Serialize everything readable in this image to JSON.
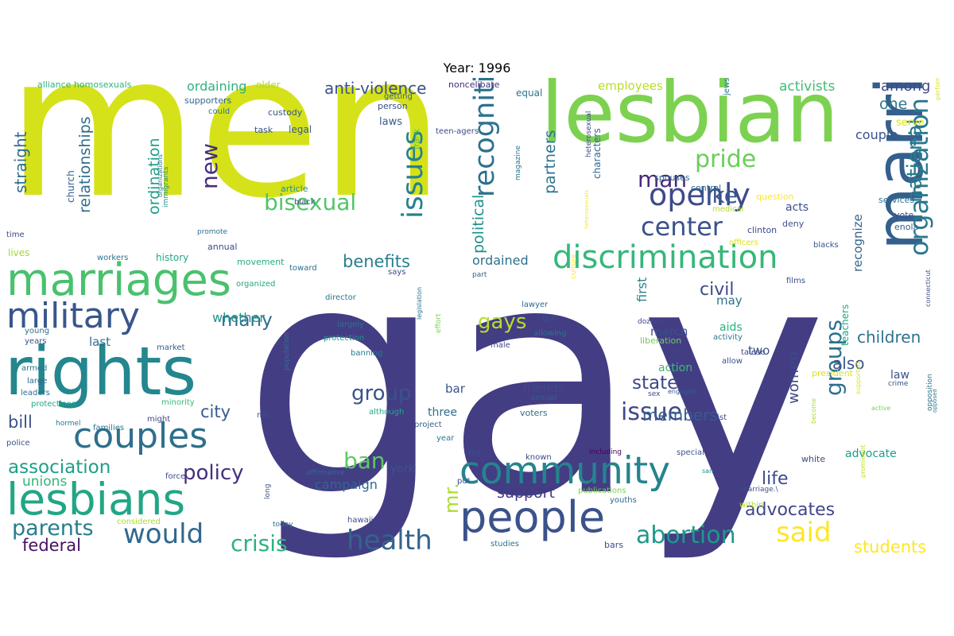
{
  "title": "Year: 1996",
  "colors": {
    "background": "#ffffff",
    "colormap": "viridis"
  },
  "words": [
    {
      "text": "gay",
      "color": "#433d84"
    },
    {
      "text": "men",
      "color": "#d5e21a"
    },
    {
      "text": "lesbian",
      "color": "#7cd250"
    },
    {
      "text": "marriage",
      "color": "#355f8d"
    },
    {
      "text": "rights",
      "color": "#24868e"
    },
    {
      "text": "marriages",
      "color": "#4ac16d"
    },
    {
      "text": "people",
      "color": "#3b528b"
    },
    {
      "text": "community",
      "color": "#25848e"
    },
    {
      "text": "couples",
      "color": "#2e6f8e"
    },
    {
      "text": "lesbians",
      "color": "#21a685"
    },
    {
      "text": "military",
      "color": "#39568c"
    },
    {
      "text": "discrimination",
      "color": "#35b779"
    },
    {
      "text": "openly",
      "color": "#3e4a89"
    },
    {
      "text": "recognition",
      "color": "#2c728e"
    },
    {
      "text": "organization",
      "color": "#2a788e"
    },
    {
      "text": "issues",
      "color": "#26828e"
    },
    {
      "text": "health",
      "color": "#33638d"
    },
    {
      "text": "would",
      "color": "#31688e"
    },
    {
      "text": "said",
      "color": "#fde725"
    },
    {
      "text": "center",
      "color": "#3b528b"
    },
    {
      "text": "abortion",
      "color": "#1f988b"
    },
    {
      "text": "crisis",
      "color": "#2db27d"
    },
    {
      "text": "issue",
      "color": "#3e4989"
    },
    {
      "text": "pride",
      "color": "#6ccd5a"
    },
    {
      "text": "man",
      "color": "#482878"
    },
    {
      "text": "groups",
      "color": "#2d708e"
    },
    {
      "text": "national",
      "color": "#2a788e"
    },
    {
      "text": "bisexual",
      "color": "#52c569"
    },
    {
      "text": "like",
      "color": "#38588c"
    },
    {
      "text": "group",
      "color": "#3b528b"
    },
    {
      "text": "new",
      "color": "#472d7b"
    },
    {
      "text": "parents",
      "color": "#287d8e"
    },
    {
      "text": "gays",
      "color": "#b5de2b"
    },
    {
      "text": "policy",
      "color": "#46307e"
    },
    {
      "text": "ban",
      "color": "#5ec962"
    },
    {
      "text": "association",
      "color": "#1f9e89"
    },
    {
      "text": "federal",
      "color": "#471063"
    },
    {
      "text": "mr.",
      "color": "#addc30"
    },
    {
      "text": "many",
      "color": "#2e6e8e"
    },
    {
      "text": "state",
      "color": "#3f4788"
    },
    {
      "text": "advocates",
      "color": "#404688"
    },
    {
      "text": "life",
      "color": "#3e4a89"
    },
    {
      "text": "students",
      "color": "#fde725"
    },
    {
      "text": "political",
      "color": "#21918c"
    },
    {
      "text": "city",
      "color": "#365c8d"
    },
    {
      "text": "civil",
      "color": "#3e4a89"
    },
    {
      "text": "members",
      "color": "#375b8d"
    },
    {
      "text": "anti-violence",
      "color": "#3b528b"
    },
    {
      "text": "straight",
      "color": "#2e6e8e"
    },
    {
      "text": "benefits",
      "color": "#277f8e"
    },
    {
      "text": "also",
      "color": "#39568c"
    },
    {
      "text": "children",
      "color": "#2c728e"
    },
    {
      "text": "women",
      "color": "#3e4a89"
    },
    {
      "text": "partners",
      "color": "#2b758e"
    },
    {
      "text": "relationships",
      "color": "#2e6f8e"
    },
    {
      "text": "ordination",
      "color": "#1fa088"
    },
    {
      "text": "bill",
      "color": "#3b528b"
    },
    {
      "text": "support",
      "color": "#443983"
    },
    {
      "text": "unions",
      "color": "#31b57b"
    },
    {
      "text": "campaign",
      "color": "#31668e"
    },
    {
      "text": "couple",
      "color": "#3a538b"
    },
    {
      "text": "one",
      "color": "#2a768e"
    },
    {
      "text": "among",
      "color": "#3f4889"
    },
    {
      "text": "activists",
      "color": "#3fbc73"
    },
    {
      "text": "ordaining",
      "color": "#2db27d"
    },
    {
      "text": "employees",
      "color": "#b8de29"
    },
    {
      "text": "ordained",
      "color": "#2c718e"
    },
    {
      "text": "recognize",
      "color": "#33638d"
    },
    {
      "text": "first",
      "color": "#25838e"
    },
    {
      "text": "march",
      "color": "#3c4f8a"
    },
    {
      "text": "whether",
      "color": "#20928c"
    },
    {
      "text": "last",
      "color": "#2d708e"
    },
    {
      "text": "three",
      "color": "#2f6c8e"
    },
    {
      "text": "bar",
      "color": "#39558c"
    },
    {
      "text": "york",
      "color": "#3b528b"
    },
    {
      "text": "friends",
      "color": "#3e4a89"
    },
    {
      "text": "two",
      "color": "#39568c"
    },
    {
      "text": "may",
      "color": "#2b748e"
    },
    {
      "text": "aids",
      "color": "#2ab07f"
    },
    {
      "text": "action",
      "color": "#3aba76"
    },
    {
      "text": "advocate",
      "color": "#1e9c89"
    },
    {
      "text": "law",
      "color": "#3b528b"
    },
    {
      "text": "teachers",
      "color": "#21a685"
    },
    {
      "text": "acts",
      "color": "#3c4f8a"
    },
    {
      "text": "serve",
      "color": "#dce319"
    },
    {
      "text": "characters",
      "color": "#31678e"
    },
    {
      "text": "laws",
      "color": "#365c8d"
    },
    {
      "text": "legal",
      "color": "#38598c"
    },
    {
      "text": "person",
      "color": "#3c4f8a"
    },
    {
      "text": "church",
      "color": "#355e8d"
    },
    {
      "text": "history",
      "color": "#22a884"
    },
    {
      "text": "annual",
      "color": "#3e4a89"
    },
    {
      "text": "movement",
      "color": "#25ab82"
    },
    {
      "text": "lives",
      "color": "#a2da37"
    },
    {
      "text": "older",
      "color": "#addc30"
    },
    {
      "text": "alliance homosexuals",
      "color": "#30b57a"
    },
    {
      "text": "supporters",
      "color": "#31678e"
    },
    {
      "text": "could",
      "color": "#2a788e"
    },
    {
      "text": "custody",
      "color": "#39568c"
    },
    {
      "text": "task",
      "color": "#3b528b"
    },
    {
      "text": "getting",
      "color": "#355e8d"
    },
    {
      "text": "says",
      "color": "#3e4989"
    },
    {
      "text": "equal",
      "color": "#2c728e"
    },
    {
      "text": "noncelibate",
      "color": "#472d7b"
    },
    {
      "text": "teen-agers",
      "color": "#3e4a89"
    },
    {
      "text": "frank",
      "color": "#3fbc73"
    },
    {
      "text": "spouses",
      "color": "#31688e"
    },
    {
      "text": "control",
      "color": "#2e6e8e"
    },
    {
      "text": "question",
      "color": "#fde725"
    },
    {
      "text": "article",
      "color": "#20928c"
    },
    {
      "text": "black",
      "color": "#3e4a89"
    },
    {
      "text": "magazine",
      "color": "#2b758e"
    },
    {
      "text": "medical",
      "color": "#b5de2b"
    },
    {
      "text": "deny",
      "color": "#3b528b"
    },
    {
      "text": "clinton",
      "color": "#3e4a89"
    },
    {
      "text": "officers",
      "color": "#dce319"
    },
    {
      "text": "blacks",
      "color": "#3b528b"
    },
    {
      "text": "services",
      "color": "#2c718e"
    },
    {
      "text": "vote",
      "color": "#3b528b"
    },
    {
      "text": "enola",
      "color": "#33638d"
    },
    {
      "text": "jews",
      "color": "#2a788e"
    },
    {
      "text": "immigrants",
      "color": "#21918c"
    },
    {
      "text": "organizations",
      "color": "#2c728e"
    },
    {
      "text": "time",
      "color": "#3e4a89"
    },
    {
      "text": "promote",
      "color": "#2d708e"
    },
    {
      "text": "workers",
      "color": "#2b748e"
    },
    {
      "text": "toward",
      "color": "#2e6e8e"
    },
    {
      "text": "organized",
      "color": "#22a884"
    },
    {
      "text": "director",
      "color": "#2a788e"
    },
    {
      "text": "part",
      "color": "#365c8d"
    },
    {
      "text": "culture",
      "color": "#fde725"
    },
    {
      "text": "films",
      "color": "#3b528b"
    },
    {
      "text": "dozens",
      "color": "#3e4a89"
    },
    {
      "text": "lawyer",
      "color": "#31688e"
    },
    {
      "text": "gun",
      "color": "#3b528b"
    },
    {
      "text": "allowing",
      "color": "#2c728e"
    },
    {
      "text": "liberation",
      "color": "#6ccd5a"
    },
    {
      "text": "activity",
      "color": "#2a788e"
    },
    {
      "text": "allow",
      "color": "#3b528b"
    },
    {
      "text": "talese",
      "color": "#3e4a89"
    },
    {
      "text": "largely",
      "color": "#2c728e"
    },
    {
      "text": "protection",
      "color": "#20928c"
    },
    {
      "text": "banning",
      "color": "#2a788e"
    },
    {
      "text": "effort",
      "color": "#7cd250"
    },
    {
      "text": "legislation",
      "color": "#2c728e"
    },
    {
      "text": "male",
      "color": "#3e4a89"
    },
    {
      "text": "young",
      "color": "#2c728e"
    },
    {
      "text": "years",
      "color": "#3b528b"
    },
    {
      "text": "market",
      "color": "#365c8d"
    },
    {
      "text": "armed",
      "color": "#2a788e"
    },
    {
      "text": "large",
      "color": "#31688e"
    },
    {
      "text": "leaders",
      "color": "#2d708e"
    },
    {
      "text": "population",
      "color": "#2c728e"
    },
    {
      "text": "protections",
      "color": "#22a884"
    },
    {
      "text": "minority",
      "color": "#35b779"
    },
    {
      "text": "hormel",
      "color": "#2a788e"
    },
    {
      "text": "families",
      "color": "#2b748e"
    },
    {
      "text": "might",
      "color": "#3e4a89"
    },
    {
      "text": "ms.",
      "color": "#3b528b"
    },
    {
      "text": "police",
      "color": "#3b528b"
    },
    {
      "text": "considered",
      "color": "#addc30"
    },
    {
      "text": "force",
      "color": "#3e4a89"
    },
    {
      "text": "project",
      "color": "#355e8d"
    },
    {
      "text": "although",
      "color": "#22a884"
    },
    {
      "text": "year",
      "color": "#2a788e"
    },
    {
      "text": "say",
      "color": "#3b528b"
    },
    {
      "text": "affirmative",
      "color": "#31688e"
    },
    {
      "text": "known",
      "color": "#3e4a89"
    },
    {
      "text": "including",
      "color": "#440154"
    },
    {
      "text": "put",
      "color": "#3e4a89"
    },
    {
      "text": "publications",
      "color": "#7cd250"
    },
    {
      "text": "youths",
      "color": "#31688e"
    },
    {
      "text": "marriage.\\",
      "color": "#3b528b"
    },
    {
      "text": "within",
      "color": "#b5de2b"
    },
    {
      "text": "hawaii",
      "color": "#3e4a89"
    },
    {
      "text": "today",
      "color": "#2c728e"
    },
    {
      "text": "long",
      "color": "#3b528b"
    },
    {
      "text": "studies",
      "color": "#2c728e"
    },
    {
      "text": "bars",
      "color": "#3e4a89"
    },
    {
      "text": "special",
      "color": "#3b528b"
    },
    {
      "text": "white",
      "color": "#3e4a89"
    },
    {
      "text": "activist",
      "color": "#3e4a89"
    },
    {
      "text": "sexual",
      "color": "#355e8d"
    },
    {
      "text": "voters",
      "color": "#2e6e8e"
    },
    {
      "text": "sex",
      "color": "#3e4a89"
    },
    {
      "text": "engaged",
      "color": "#365c8d"
    },
    {
      "text": "supported",
      "color": "#dce319"
    },
    {
      "text": "president",
      "color": "#dce319"
    },
    {
      "text": "crime",
      "color": "#3b528b"
    },
    {
      "text": "active",
      "color": "#7cd250"
    },
    {
      "text": "become",
      "color": "#addc30"
    },
    {
      "text": "opposition",
      "color": "#2c728e"
    },
    {
      "text": "san",
      "color": "#21918c"
    },
    {
      "text": "prominent",
      "color": "#b5de2b"
    },
    {
      "text": "connecticut",
      "color": "#3b528b"
    },
    {
      "text": "opposed",
      "color": "#2a788e"
    },
    {
      "text": "heterosexuals",
      "color": "#fde725"
    },
    {
      "text": "heterosexual",
      "color": "#3e4a89"
    },
    {
      "text": "performed",
      "color": "#dce319"
    }
  ]
}
